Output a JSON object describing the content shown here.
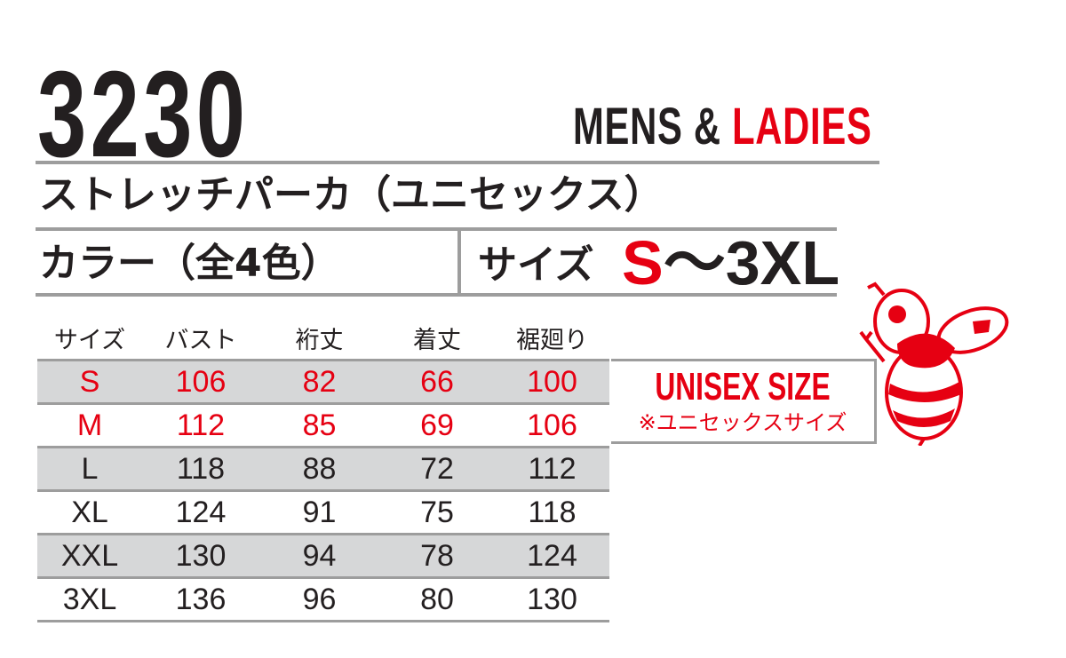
{
  "header": {
    "model_number": "3230",
    "gender_mens": "MENS &",
    "gender_ladies": "LADIES",
    "product_name": "ストレッチパーカ（ユニセックス）",
    "color_label": "カラー（全4色）",
    "size_label": "サイズ",
    "size_range_start": "S",
    "size_range_rest": "〜3XL"
  },
  "size_table": {
    "headers": [
      "サイズ",
      "バスト",
      "裄丈",
      "着丈",
      "裾廻り"
    ],
    "rows": [
      [
        "S",
        "106",
        "82",
        "66",
        "100"
      ],
      [
        "M",
        "112",
        "85",
        "69",
        "106"
      ],
      [
        "L",
        "118",
        "88",
        "72",
        "112"
      ],
      [
        "XL",
        "124",
        "91",
        "75",
        "118"
      ],
      [
        "XXL",
        "130",
        "94",
        "78",
        "124"
      ],
      [
        "3XL",
        "136",
        "96",
        "80",
        "130"
      ]
    ]
  },
  "unisex": {
    "title": "UNISEX SIZE",
    "note": "※ユニセックスサイズ"
  },
  "colors": {
    "accent": "#e60012",
    "text": "#231f20",
    "row_shade": "#d6d7d8",
    "rule": "#9d9d9d"
  },
  "mascot": {
    "icon": "bee-icon"
  }
}
